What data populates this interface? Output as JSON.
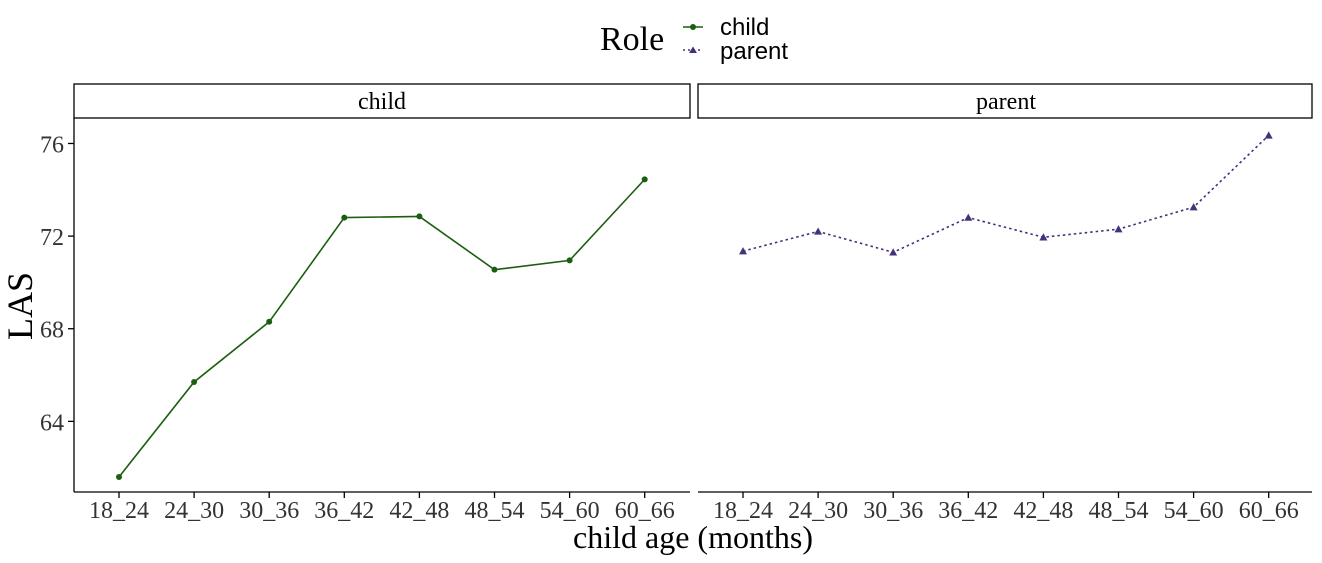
{
  "chart_data": {
    "type": "line",
    "legend": {
      "title": "Role",
      "position": "top",
      "entries": [
        {
          "label": "child",
          "color": "#1b5e0f",
          "marker": "circle",
          "line": "solid"
        },
        {
          "label": "parent",
          "color": "#45307a",
          "marker": "triangle",
          "line": "dotted"
        }
      ]
    },
    "xlabel": "child age (months)",
    "ylabel": "LAS",
    "categories": [
      "18_24",
      "24_30",
      "30_36",
      "36_42",
      "42_48",
      "48_54",
      "54_60",
      "60_66"
    ],
    "y_ticks": [
      64,
      68,
      72,
      76
    ],
    "ylim": [
      60.95,
      77.1
    ],
    "grid": false,
    "panels": [
      {
        "title": "child",
        "series": {
          "name": "child",
          "values": [
            61.6,
            65.7,
            68.3,
            72.8,
            72.85,
            70.55,
            70.95,
            74.45
          ]
        }
      },
      {
        "title": "parent",
        "series": {
          "name": "parent",
          "values": [
            71.35,
            72.2,
            71.3,
            72.8,
            71.95,
            72.3,
            73.25,
            76.35
          ]
        }
      }
    ]
  }
}
